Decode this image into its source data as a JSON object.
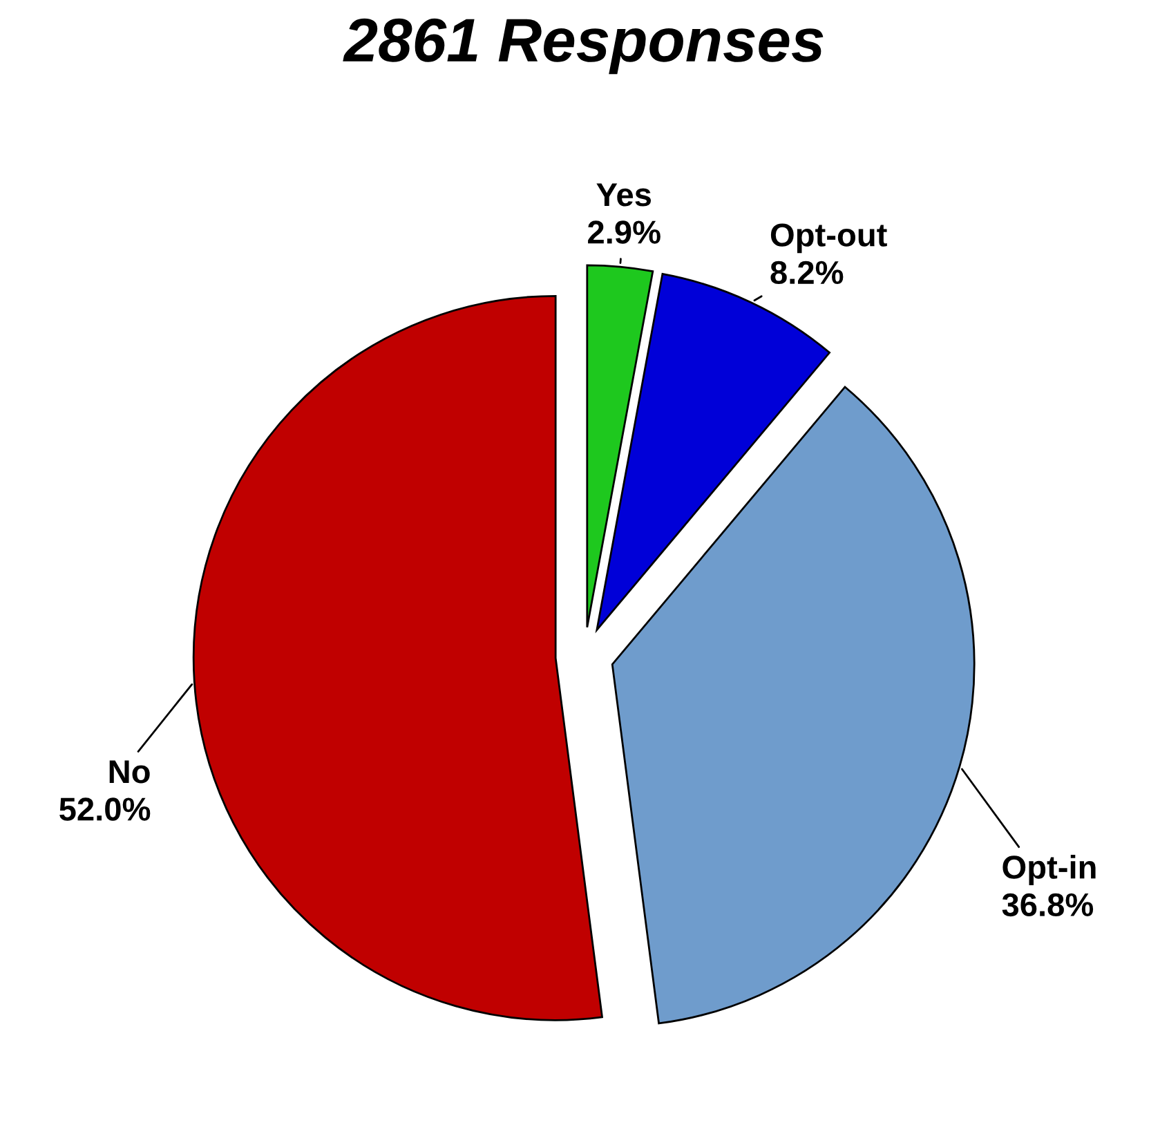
{
  "chart_data": {
    "type": "pie",
    "title": "2861 Responses",
    "categories": [
      "Yes",
      "Opt-out",
      "Opt-in",
      "No"
    ],
    "values": [
      2.9,
      8.2,
      36.8,
      52.0
    ],
    "value_labels": [
      "2.9%",
      "8.2%",
      "36.8%",
      "52.0%"
    ],
    "colors": [
      "#1ec81e",
      "#0000d8",
      "#6f9ccc",
      "#c00000"
    ]
  }
}
